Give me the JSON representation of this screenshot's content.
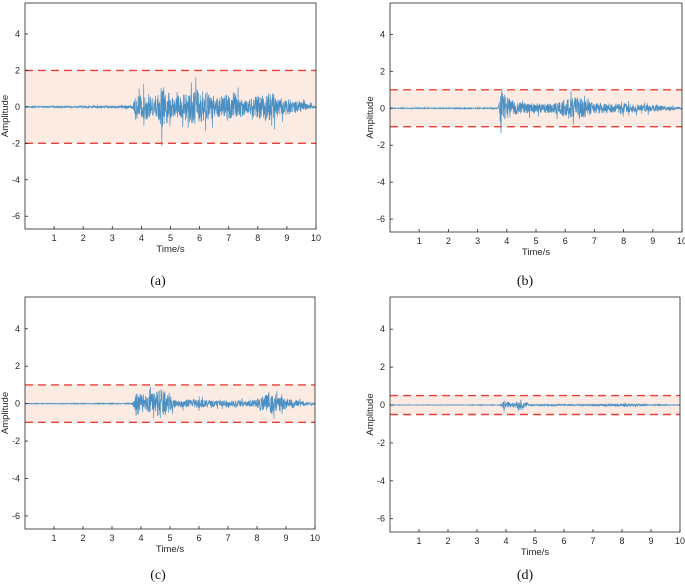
{
  "chart_data": [
    {
      "type": "line",
      "caption": "(a)",
      "xlabel": "Time/s",
      "ylabel": "Amplitude",
      "xlim": [
        0,
        10
      ],
      "ylim": [
        -6.7,
        5.7
      ],
      "xticks": [
        1,
        2,
        3,
        4,
        5,
        6,
        7,
        8,
        9,
        10
      ],
      "yticks": [
        -6,
        -4,
        -2,
        0,
        2,
        4
      ],
      "threshold": 2.0,
      "band_color": "#fcebe2",
      "threshold_color": "#e8403a",
      "line_color": "#4a90c4",
      "signal_envelope": [
        {
          "t": 0.0,
          "amp": 0.06
        },
        {
          "t": 1.5,
          "amp": 0.08
        },
        {
          "t": 2.5,
          "amp": 0.12
        },
        {
          "t": 3.7,
          "amp": 0.15
        },
        {
          "t": 3.8,
          "amp": 1.2
        },
        {
          "t": 4.2,
          "amp": 1.3
        },
        {
          "t": 4.5,
          "amp": 0.7
        },
        {
          "t": 4.7,
          "amp": 2.2
        },
        {
          "t": 5.1,
          "amp": 1.0
        },
        {
          "t": 5.9,
          "amp": 1.8
        },
        {
          "t": 6.6,
          "amp": 1.0
        },
        {
          "t": 7.2,
          "amp": 1.5
        },
        {
          "t": 7.6,
          "amp": 0.7
        },
        {
          "t": 8.4,
          "amp": 1.6
        },
        {
          "t": 8.8,
          "amp": 0.9
        },
        {
          "t": 9.4,
          "amp": 0.6
        },
        {
          "t": 10.0,
          "amp": 0.1
        }
      ]
    },
    {
      "type": "line",
      "caption": "(b)",
      "xlabel": "Time/s",
      "ylabel": "Amplitude",
      "xlim": [
        0,
        10
      ],
      "ylim": [
        -6.7,
        5.7
      ],
      "xticks": [
        1,
        2,
        3,
        4,
        5,
        6,
        7,
        8,
        9,
        10
      ],
      "yticks": [
        -6,
        -4,
        -2,
        0,
        2,
        4
      ],
      "threshold": 1.0,
      "band_color": "#fcebe2",
      "threshold_color": "#e8403a",
      "line_color": "#4a90c4",
      "signal_envelope": [
        {
          "t": 0.0,
          "amp": 0.04
        },
        {
          "t": 3.7,
          "amp": 0.06
        },
        {
          "t": 3.8,
          "amp": 2.6
        },
        {
          "t": 3.95,
          "amp": 1.2
        },
        {
          "t": 4.3,
          "amp": 0.6
        },
        {
          "t": 5.5,
          "amp": 0.45
        },
        {
          "t": 6.4,
          "amp": 1.2
        },
        {
          "t": 7.0,
          "amp": 0.5
        },
        {
          "t": 8.0,
          "amp": 0.45
        },
        {
          "t": 9.0,
          "amp": 0.35
        },
        {
          "t": 10.0,
          "amp": 0.08
        }
      ]
    },
    {
      "type": "line",
      "caption": "(c)",
      "xlabel": "Time/s",
      "ylabel": "Amplitude",
      "xlim": [
        0,
        10
      ],
      "ylim": [
        -6.7,
        5.7
      ],
      "xticks": [
        1,
        2,
        3,
        4,
        5,
        6,
        7,
        8,
        9,
        10
      ],
      "yticks": [
        -6,
        -4,
        -2,
        0,
        2,
        4
      ],
      "threshold": 1.0,
      "band_color": "#fcebe2",
      "threshold_color": "#e8403a",
      "line_color": "#4a90c4",
      "signal_envelope": [
        {
          "t": 0.0,
          "amp": 0.03
        },
        {
          "t": 3.7,
          "amp": 0.05
        },
        {
          "t": 3.85,
          "amp": 1.1
        },
        {
          "t": 4.2,
          "amp": 0.7
        },
        {
          "t": 4.7,
          "amp": 1.5
        },
        {
          "t": 5.2,
          "amp": 0.35
        },
        {
          "t": 6.0,
          "amp": 0.4
        },
        {
          "t": 7.0,
          "amp": 0.3
        },
        {
          "t": 8.0,
          "amp": 0.35
        },
        {
          "t": 8.4,
          "amp": 1.2
        },
        {
          "t": 8.9,
          "amp": 0.6
        },
        {
          "t": 9.5,
          "amp": 0.3
        },
        {
          "t": 10.0,
          "amp": 0.05
        }
      ]
    },
    {
      "type": "line",
      "caption": "(d)",
      "xlabel": "Time/s",
      "ylabel": "Amplitude",
      "xlim": [
        0,
        10
      ],
      "ylim": [
        -6.7,
        5.7
      ],
      "xticks": [
        1,
        2,
        3,
        4,
        5,
        6,
        7,
        8,
        9,
        10
      ],
      "yticks": [
        -6,
        -4,
        -2,
        0,
        2,
        4
      ],
      "threshold": 0.5,
      "band_color": "#fcebe2",
      "threshold_color": "#e8403a",
      "line_color": "#4a90c4",
      "signal_envelope": [
        {
          "t": 0.0,
          "amp": 0.02
        },
        {
          "t": 3.8,
          "amp": 0.03
        },
        {
          "t": 3.95,
          "amp": 0.45
        },
        {
          "t": 4.2,
          "amp": 0.15
        },
        {
          "t": 4.5,
          "amp": 0.55
        },
        {
          "t": 4.8,
          "amp": 0.08
        },
        {
          "t": 6.5,
          "amp": 0.07
        },
        {
          "t": 8.2,
          "amp": 0.15
        },
        {
          "t": 9.0,
          "amp": 0.05
        },
        {
          "t": 10.0,
          "amp": 0.03
        }
      ]
    }
  ]
}
